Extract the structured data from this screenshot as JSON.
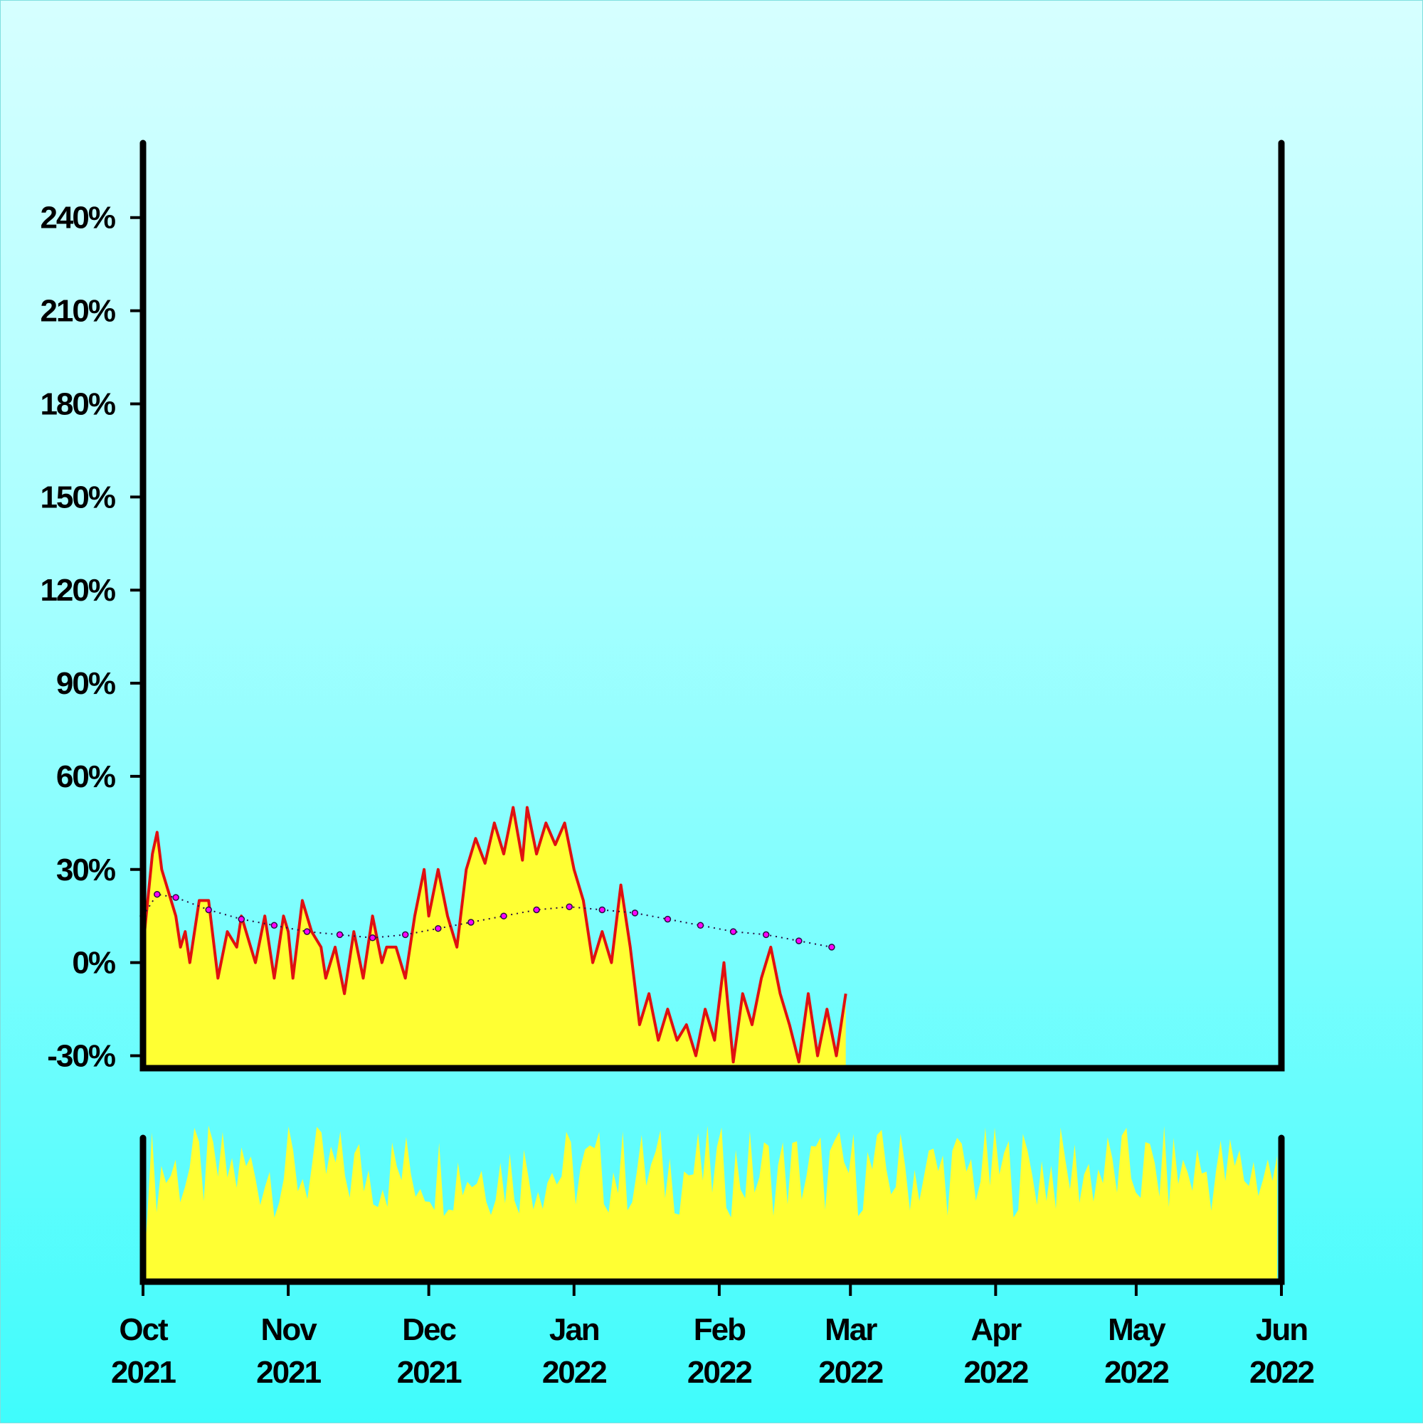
{
  "chart_data": {
    "type": "area",
    "colors": {
      "area_fill": "#ffff33",
      "price_line": "#e01010",
      "moving_average_line": "#2a0a40",
      "moving_average_dots": "#ff00ff",
      "volume_fill": "#ffff33",
      "axis": "#000000"
    },
    "ylim": [
      -34,
      264
    ],
    "y_ticks": [
      {
        "value": 240,
        "label": "240%"
      },
      {
        "value": 210,
        "label": "210%"
      },
      {
        "value": 180,
        "label": "180%"
      },
      {
        "value": 150,
        "label": "150%"
      },
      {
        "value": 120,
        "label": "120%"
      },
      {
        "value": 90,
        "label": "90%"
      },
      {
        "value": 60,
        "label": "60%"
      },
      {
        "value": 30,
        "label": "30%"
      },
      {
        "value": 0,
        "label": "0%"
      },
      {
        "value": -30,
        "label": "-30%"
      }
    ],
    "x_range": [
      "2021-10-01",
      "2022-06-01"
    ],
    "x_ticks": [
      {
        "date": "2021-10-01",
        "month": "Oct",
        "year": "2021"
      },
      {
        "date": "2021-11-01",
        "month": "Nov",
        "year": "2021"
      },
      {
        "date": "2021-12-01",
        "month": "Dec",
        "year": "2021"
      },
      {
        "date": "2022-01-01",
        "month": "Jan",
        "year": "2022"
      },
      {
        "date": "2022-02-01",
        "month": "Feb",
        "year": "2022"
      },
      {
        "date": "2022-03-01",
        "month": "Mar",
        "year": "2022"
      },
      {
        "date": "2022-04-01",
        "month": "Apr",
        "year": "2022"
      },
      {
        "date": "2022-05-01",
        "month": "May",
        "year": "2022"
      },
      {
        "date": "2022-06-01",
        "month": "Jun",
        "year": "2022"
      }
    ],
    "series": [
      {
        "kind": "price",
        "points": [
          [
            "2021-10-01",
            5
          ],
          [
            "2021-10-03",
            35
          ],
          [
            "2021-10-04",
            42
          ],
          [
            "2021-10-05",
            30
          ],
          [
            "2021-10-06",
            25
          ],
          [
            "2021-10-08",
            15
          ],
          [
            "2021-10-09",
            5
          ],
          [
            "2021-10-10",
            10
          ],
          [
            "2021-10-11",
            0
          ],
          [
            "2021-10-13",
            20
          ],
          [
            "2021-10-15",
            20
          ],
          [
            "2021-10-17",
            -5
          ],
          [
            "2021-10-19",
            10
          ],
          [
            "2021-10-21",
            5
          ],
          [
            "2021-10-22",
            15
          ],
          [
            "2021-10-24",
            5
          ],
          [
            "2021-10-25",
            0
          ],
          [
            "2021-10-27",
            15
          ],
          [
            "2021-10-29",
            -5
          ],
          [
            "2021-10-31",
            15
          ],
          [
            "2021-11-01",
            10
          ],
          [
            "2021-11-02",
            -5
          ],
          [
            "2021-11-04",
            20
          ],
          [
            "2021-11-06",
            10
          ],
          [
            "2021-11-08",
            5
          ],
          [
            "2021-11-09",
            -5
          ],
          [
            "2021-11-11",
            5
          ],
          [
            "2021-11-13",
            -10
          ],
          [
            "2021-11-15",
            10
          ],
          [
            "2021-11-17",
            -5
          ],
          [
            "2021-11-19",
            15
          ],
          [
            "2021-11-21",
            0
          ],
          [
            "2021-11-22",
            5
          ],
          [
            "2021-11-24",
            5
          ],
          [
            "2021-11-26",
            -5
          ],
          [
            "2021-11-28",
            15
          ],
          [
            "2021-11-30",
            30
          ],
          [
            "2021-12-01",
            15
          ],
          [
            "2021-12-03",
            30
          ],
          [
            "2021-12-05",
            15
          ],
          [
            "2021-12-07",
            5
          ],
          [
            "2021-12-09",
            30
          ],
          [
            "2021-12-11",
            40
          ],
          [
            "2021-12-13",
            32
          ],
          [
            "2021-12-15",
            45
          ],
          [
            "2021-12-17",
            35
          ],
          [
            "2021-12-19",
            50
          ],
          [
            "2021-12-21",
            33
          ],
          [
            "2021-12-22",
            50
          ],
          [
            "2021-12-24",
            35
          ],
          [
            "2021-12-26",
            45
          ],
          [
            "2021-12-28",
            38
          ],
          [
            "2021-12-30",
            45
          ],
          [
            "2022-01-01",
            30
          ],
          [
            "2022-01-03",
            20
          ],
          [
            "2022-01-05",
            0
          ],
          [
            "2022-01-07",
            10
          ],
          [
            "2022-01-09",
            0
          ],
          [
            "2022-01-11",
            25
          ],
          [
            "2022-01-13",
            5
          ],
          [
            "2022-01-15",
            -20
          ],
          [
            "2022-01-17",
            -10
          ],
          [
            "2022-01-19",
            -25
          ],
          [
            "2022-01-21",
            -15
          ],
          [
            "2022-01-23",
            -25
          ],
          [
            "2022-01-25",
            -20
          ],
          [
            "2022-01-27",
            -30
          ],
          [
            "2022-01-29",
            -15
          ],
          [
            "2022-01-31",
            -25
          ],
          [
            "2022-02-02",
            0
          ],
          [
            "2022-02-04",
            -32
          ],
          [
            "2022-02-06",
            -10
          ],
          [
            "2022-02-08",
            -20
          ],
          [
            "2022-02-10",
            -5
          ],
          [
            "2022-02-12",
            5
          ],
          [
            "2022-02-14",
            -10
          ],
          [
            "2022-02-16",
            -20
          ],
          [
            "2022-02-18",
            -32
          ],
          [
            "2022-02-20",
            -10
          ],
          [
            "2022-02-22",
            -30
          ],
          [
            "2022-02-24",
            -15
          ],
          [
            "2022-02-26",
            -30
          ],
          [
            "2022-02-28",
            -10
          ]
        ]
      },
      {
        "kind": "moving_average",
        "points": [
          [
            "2021-10-01",
            15
          ],
          [
            "2021-10-04",
            22
          ],
          [
            "2021-10-08",
            21
          ],
          [
            "2021-10-15",
            17
          ],
          [
            "2021-10-22",
            14
          ],
          [
            "2021-10-29",
            12
          ],
          [
            "2021-11-05",
            10
          ],
          [
            "2021-11-12",
            9
          ],
          [
            "2021-11-19",
            8
          ],
          [
            "2021-11-26",
            9
          ],
          [
            "2021-12-03",
            11
          ],
          [
            "2021-12-10",
            13
          ],
          [
            "2021-12-17",
            15
          ],
          [
            "2021-12-24",
            17
          ],
          [
            "2021-12-31",
            18
          ],
          [
            "2022-01-07",
            17
          ],
          [
            "2022-01-14",
            16
          ],
          [
            "2022-01-21",
            14
          ],
          [
            "2022-01-28",
            12
          ],
          [
            "2022-02-04",
            10
          ],
          [
            "2022-02-11",
            9
          ],
          [
            "2022-02-18",
            7
          ],
          [
            "2022-02-25",
            5
          ]
        ]
      }
    ],
    "volume_note": "Volume values are on an unlabeled axis and are shown as relative bar heights only."
  }
}
